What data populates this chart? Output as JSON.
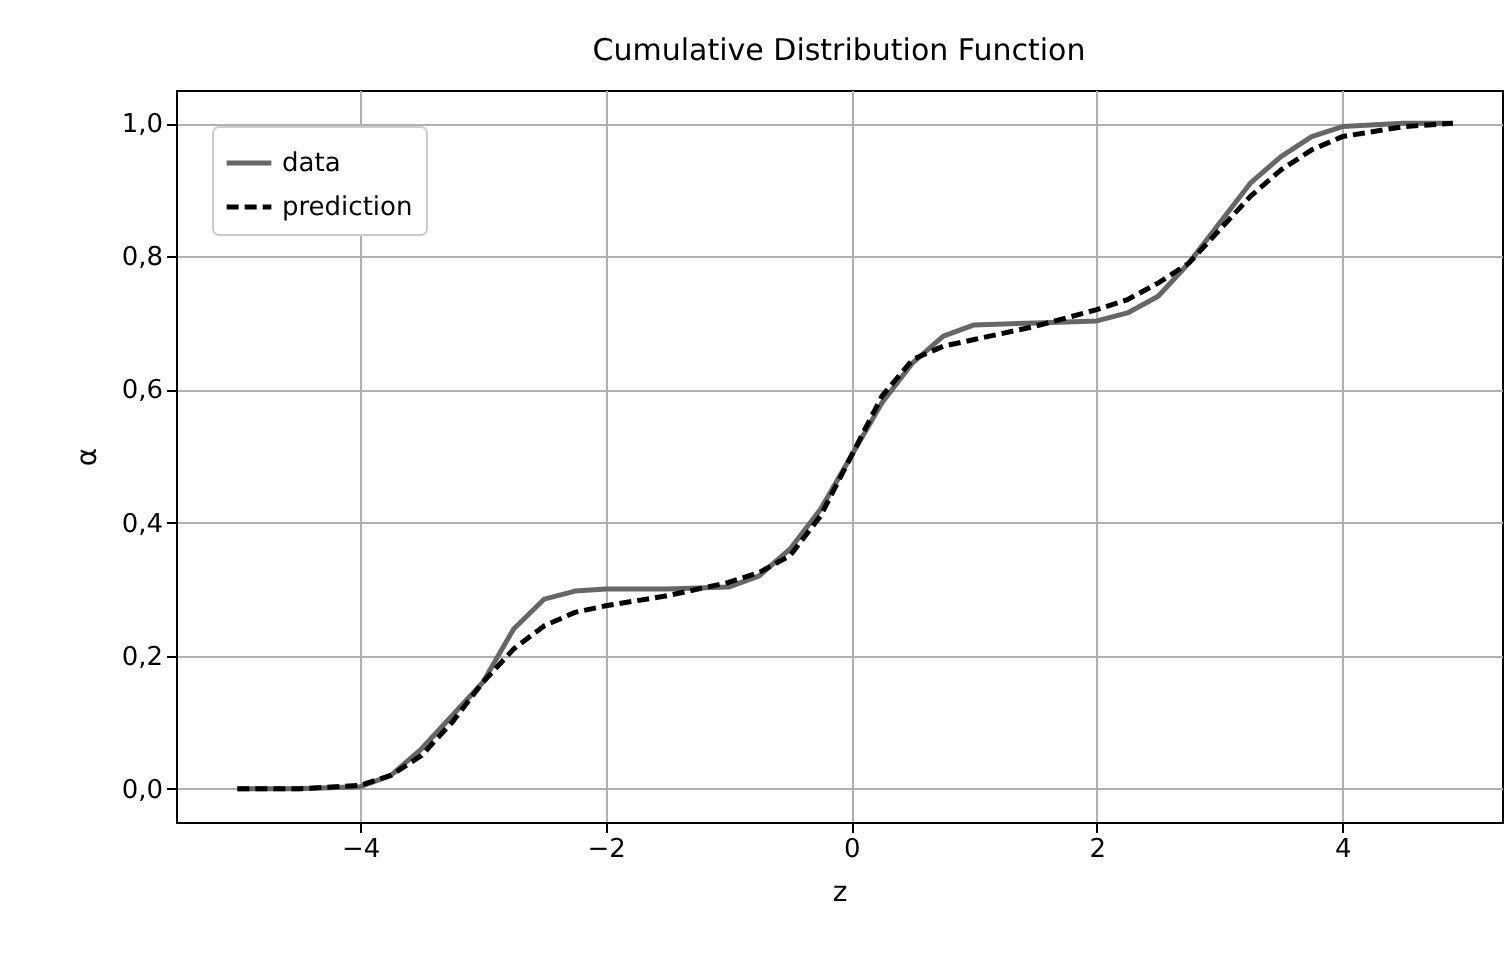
{
  "chart_data": {
    "type": "line",
    "title": "Cumulative Distribution Function",
    "xlabel": "z",
    "ylabel": "α",
    "x": [
      -5,
      -4.5,
      -4,
      -3.75,
      -3.5,
      -3.25,
      -3,
      -2.75,
      -2.5,
      -2.25,
      -2,
      -1.5,
      -1,
      -0.75,
      -0.5,
      -0.25,
      0,
      0.25,
      0.5,
      0.75,
      1,
      1.5,
      2,
      2.25,
      2.5,
      2.75,
      3,
      3.25,
      3.5,
      3.75,
      4,
      4.5,
      4.9
    ],
    "series": [
      {
        "name": "data",
        "color": "#666666",
        "line_style": "solid",
        "values": [
          0,
          0,
          0.003,
          0.02,
          0.06,
          0.11,
          0.16,
          0.24,
          0.285,
          0.297,
          0.3,
          0.3,
          0.303,
          0.32,
          0.36,
          0.42,
          0.5,
          0.58,
          0.64,
          0.68,
          0.697,
          0.7,
          0.703,
          0.715,
          0.74,
          0.79,
          0.85,
          0.91,
          0.95,
          0.98,
          0.995,
          1,
          1
        ]
      },
      {
        "name": "prediction",
        "color": "#000000",
        "line_style": "dashed",
        "values": [
          0,
          0,
          0.005,
          0.02,
          0.05,
          0.1,
          0.16,
          0.21,
          0.245,
          0.265,
          0.275,
          0.29,
          0.31,
          0.325,
          0.35,
          0.41,
          0.5,
          0.59,
          0.645,
          0.665,
          0.675,
          0.695,
          0.72,
          0.735,
          0.76,
          0.79,
          0.84,
          0.89,
          0.93,
          0.96,
          0.98,
          0.995,
          1
        ]
      }
    ],
    "xlim": [
      -5.5,
      5.3
    ],
    "ylim": [
      -0.05,
      1.05
    ],
    "xticks": [
      {
        "value": -4,
        "label": "−4"
      },
      {
        "value": -2,
        "label": "−2"
      },
      0,
      2,
      4
    ],
    "yticks": [
      {
        "value": 0,
        "label": "0,0"
      },
      {
        "value": 0.2,
        "label": "0,2"
      },
      {
        "value": 0.4,
        "label": "0,4"
      },
      {
        "value": 0.6,
        "label": "0,6"
      },
      {
        "value": 0.8,
        "label": "0,8"
      },
      {
        "value": 1,
        "label": "1,0"
      }
    ],
    "grid": true,
    "legend": "top left"
  }
}
